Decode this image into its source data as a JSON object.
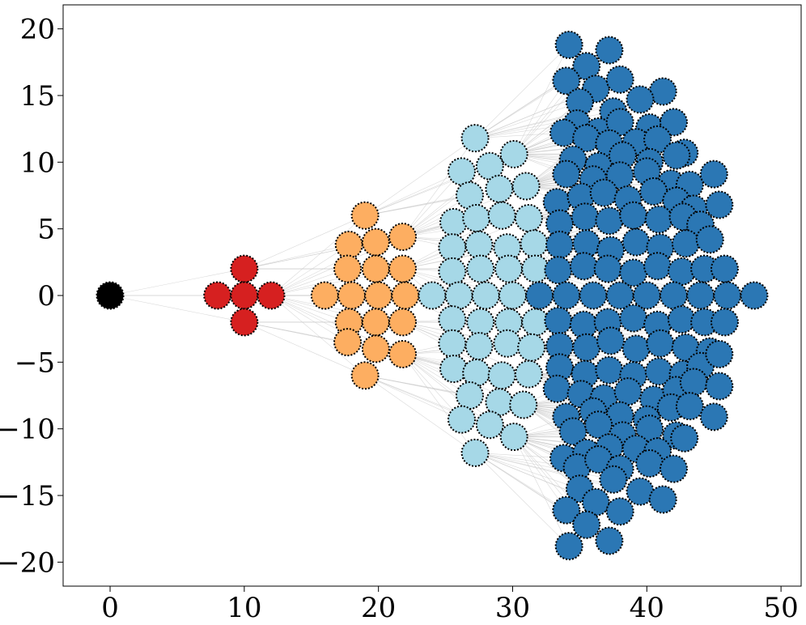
{
  "chart_data": {
    "type": "scatter",
    "title": "",
    "xlabel": "",
    "ylabel": "",
    "xlim": [
      -3.5,
      51.5
    ],
    "ylim": [
      -21.8,
      21.8
    ],
    "xticks": [
      0,
      10,
      20,
      30,
      40,
      50
    ],
    "yticks": [
      -20,
      -15,
      -10,
      -5,
      0,
      5,
      10,
      15,
      20
    ],
    "xtick_labels": [
      "0",
      "10",
      "20",
      "30",
      "40",
      "50"
    ],
    "ytick_labels": [
      "−20",
      "−15",
      "−10",
      "−5",
      "0",
      "5",
      "10",
      "15",
      "20"
    ],
    "grid": false,
    "legend": "none",
    "series": [
      {
        "color": "#000000",
        "points": [
          [
            0,
            0
          ]
        ]
      },
      {
        "color": "#d62020",
        "points": [
          [
            10,
            2
          ],
          [
            8,
            0
          ],
          [
            10,
            0
          ],
          [
            12,
            0
          ],
          [
            10,
            -2
          ]
        ]
      },
      {
        "color": "#fdae61",
        "points": [
          [
            19,
            6
          ],
          [
            17.8,
            3.8
          ],
          [
            19.8,
            4
          ],
          [
            21.8,
            4.4
          ],
          [
            17.7,
            2
          ],
          [
            19.8,
            2
          ],
          [
            21.8,
            2
          ],
          [
            16,
            0
          ],
          [
            18,
            0
          ],
          [
            20,
            0
          ],
          [
            22,
            0
          ],
          [
            17.8,
            -2
          ],
          [
            19.8,
            -2
          ],
          [
            21.8,
            -2
          ],
          [
            17.7,
            -3.5
          ],
          [
            19.8,
            -4
          ],
          [
            21.8,
            -4.4
          ],
          [
            19,
            -6
          ]
        ]
      },
      {
        "color": "#a6d8e7",
        "points": [
          [
            27.2,
            11.8
          ],
          [
            30.1,
            10.6
          ],
          [
            26.2,
            9.3
          ],
          [
            28.3,
            9.7
          ],
          [
            26.8,
            7.5
          ],
          [
            29,
            8
          ],
          [
            31,
            8.2
          ],
          [
            25.6,
            5.5
          ],
          [
            27.3,
            5.8
          ],
          [
            29.2,
            6
          ],
          [
            31.2,
            5.8
          ],
          [
            25.5,
            3.6
          ],
          [
            27.5,
            3.8
          ],
          [
            29.6,
            3.6
          ],
          [
            31.6,
            3.9
          ],
          [
            25.5,
            1.8
          ],
          [
            27.6,
            2
          ],
          [
            29.7,
            2
          ],
          [
            31.7,
            2
          ],
          [
            24,
            0
          ],
          [
            26,
            0
          ],
          [
            28,
            0
          ],
          [
            30,
            0
          ],
          [
            25.5,
            -1.8
          ],
          [
            27.6,
            -2
          ],
          [
            29.7,
            -2
          ],
          [
            31.7,
            -2
          ],
          [
            25.5,
            -3.6
          ],
          [
            27.5,
            -3.8
          ],
          [
            29.6,
            -3.6
          ],
          [
            31.4,
            -3.9
          ],
          [
            25.6,
            -5.5
          ],
          [
            27.3,
            -5.8
          ],
          [
            29.2,
            -6
          ],
          [
            31.2,
            -5.9
          ],
          [
            26.8,
            -7.5
          ],
          [
            29,
            -8
          ],
          [
            30.8,
            -8.2
          ],
          [
            26.2,
            -9.3
          ],
          [
            28.3,
            -9.7
          ],
          [
            30.1,
            -10.6
          ],
          [
            27.2,
            -11.8
          ]
        ]
      },
      {
        "color": "#2b77b4",
        "points": [
          [
            34.2,
            18.8
          ],
          [
            37.2,
            18.4
          ],
          [
            35.5,
            17.2
          ],
          [
            34,
            16.1
          ],
          [
            36.2,
            15.5
          ],
          [
            38,
            16.2
          ],
          [
            41.2,
            15.3
          ],
          [
            35,
            14.5
          ],
          [
            37.5,
            13.8
          ],
          [
            39.5,
            14.7
          ],
          [
            34.8,
            12.9
          ],
          [
            36.4,
            12.3
          ],
          [
            38,
            13
          ],
          [
            40.2,
            12.6
          ],
          [
            42,
            13
          ],
          [
            33.8,
            12.2
          ],
          [
            35.5,
            11.8
          ],
          [
            37.2,
            11.4
          ],
          [
            39.2,
            11.5
          ],
          [
            40.8,
            11.7
          ],
          [
            42.8,
            10.7
          ],
          [
            34.5,
            10.2
          ],
          [
            36.4,
            9.7
          ],
          [
            38.2,
            10.5
          ],
          [
            40.2,
            10
          ],
          [
            42.2,
            10.5
          ],
          [
            34,
            9.1
          ],
          [
            36,
            8.7
          ],
          [
            38,
            9
          ],
          [
            40,
            9.3
          ],
          [
            41.8,
            8.4
          ],
          [
            43.2,
            8.3
          ],
          [
            45,
            9.1
          ],
          [
            33.3,
            7
          ],
          [
            35.1,
            7.4
          ],
          [
            36.8,
            7.7
          ],
          [
            38.6,
            7.2
          ],
          [
            40.5,
            7.8
          ],
          [
            42.2,
            7.1
          ],
          [
            43.5,
            6.5
          ],
          [
            45.4,
            6.8
          ],
          [
            33.5,
            5.4
          ],
          [
            35.4,
            5.9
          ],
          [
            37.2,
            5.6
          ],
          [
            39,
            6
          ],
          [
            40.9,
            5.7
          ],
          [
            42.7,
            5.9
          ],
          [
            44,
            5.3
          ],
          [
            33.5,
            3.8
          ],
          [
            35.5,
            3.9
          ],
          [
            37.3,
            3.4
          ],
          [
            39.2,
            4
          ],
          [
            41,
            3.6
          ],
          [
            42.9,
            3.9
          ],
          [
            44.7,
            4.2
          ],
          [
            33.4,
            1.9
          ],
          [
            35.3,
            2.2
          ],
          [
            37.1,
            2
          ],
          [
            39,
            1.7
          ],
          [
            40.8,
            2.2
          ],
          [
            42.6,
            1.8
          ],
          [
            44.3,
            2
          ],
          [
            45.8,
            2
          ],
          [
            32,
            0
          ],
          [
            34,
            0
          ],
          [
            36,
            0
          ],
          [
            38,
            0
          ],
          [
            40,
            0
          ],
          [
            42,
            0
          ],
          [
            44,
            0
          ],
          [
            46,
            0
          ],
          [
            48,
            0
          ],
          [
            33.4,
            -1.9
          ],
          [
            35.3,
            -2.2
          ],
          [
            37.1,
            -2
          ],
          [
            39,
            -1.7
          ],
          [
            40.8,
            -2.2
          ],
          [
            42.6,
            -1.8
          ],
          [
            44.3,
            -2
          ],
          [
            45.8,
            -2
          ],
          [
            33.5,
            -3.8
          ],
          [
            35.5,
            -3.9
          ],
          [
            37.3,
            -3.4
          ],
          [
            39.2,
            -4
          ],
          [
            41,
            -3.6
          ],
          [
            42.9,
            -3.9
          ],
          [
            44.7,
            -4.2
          ],
          [
            33.5,
            -5.4
          ],
          [
            35.4,
            -5.9
          ],
          [
            37.2,
            -5.6
          ],
          [
            39,
            -6
          ],
          [
            40.9,
            -5.7
          ],
          [
            42.7,
            -5.9
          ],
          [
            44,
            -5.3
          ],
          [
            45.4,
            -4.4
          ],
          [
            33.3,
            -7
          ],
          [
            35.1,
            -7.4
          ],
          [
            36.8,
            -7.7
          ],
          [
            38.6,
            -7.2
          ],
          [
            40.5,
            -7.8
          ],
          [
            42.2,
            -7.1
          ],
          [
            43.5,
            -6.5
          ],
          [
            45.4,
            -6.8
          ],
          [
            34,
            -9.1
          ],
          [
            36,
            -8.7
          ],
          [
            38,
            -9
          ],
          [
            40,
            -9.3
          ],
          [
            41.8,
            -8.4
          ],
          [
            43.2,
            -8.3
          ],
          [
            45,
            -9.1
          ],
          [
            34.5,
            -10.2
          ],
          [
            36.4,
            -9.7
          ],
          [
            38.2,
            -10.5
          ],
          [
            40.2,
            -10
          ],
          [
            42.2,
            -10.5
          ],
          [
            33.8,
            -12.2
          ],
          [
            35.5,
            -11.8
          ],
          [
            37.2,
            -11.4
          ],
          [
            39.2,
            -11.5
          ],
          [
            40.8,
            -11.7
          ],
          [
            42.8,
            -10.7
          ],
          [
            34.8,
            -12.9
          ],
          [
            36.4,
            -12.3
          ],
          [
            38,
            -13
          ],
          [
            40.2,
            -12.6
          ],
          [
            42,
            -13
          ],
          [
            35,
            -14.5
          ],
          [
            37.5,
            -13.8
          ],
          [
            39.5,
            -14.7
          ],
          [
            34,
            -16.1
          ],
          [
            36.2,
            -15.5
          ],
          [
            38,
            -16.2
          ],
          [
            41.2,
            -15.3
          ],
          [
            35.5,
            -17.2
          ],
          [
            34.2,
            -18.8
          ],
          [
            37.2,
            -18.4
          ]
        ]
      }
    ]
  }
}
